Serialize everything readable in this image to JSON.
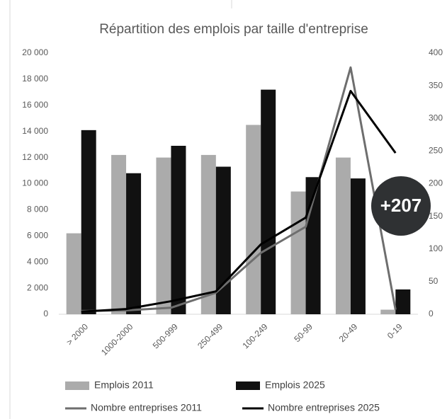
{
  "chart_data": {
    "type": "bar",
    "title": "Répartition des emplois par taille d'entreprise",
    "categories": [
      "> 2000",
      "1000-2000",
      "500-999",
      "250-499",
      "100-249",
      "50-99",
      "20-49",
      "0-19"
    ],
    "series": [
      {
        "name": "Emplois 2011",
        "color": "#ababab",
        "values": [
          6200,
          12200,
          12000,
          12200,
          14500,
          9400,
          12000,
          350
        ]
      },
      {
        "name": "Emplois 2025",
        "color": "#111111",
        "values": [
          14100,
          10800,
          12900,
          11300,
          17200,
          10500,
          10400,
          1900
        ]
      },
      {
        "name": "Nombre entreprises 2011",
        "type": "line",
        "axis": "y2",
        "color": "#6e6e6e",
        "values": [
          5,
          6,
          10,
          33,
          94,
          134,
          378,
          7
        ]
      },
      {
        "name": "Nombre entreprises 2025",
        "type": "line",
        "axis": "y2",
        "color": "#000000",
        "values": [
          4,
          8,
          20,
          35,
          107,
          148,
          342,
          247
        ]
      }
    ],
    "ylim": [
      0,
      20000
    ],
    "yticks": [
      0,
      {
        "value": 2000,
        "label": "2 000"
      },
      {
        "value": 4000,
        "label": "4 000"
      },
      {
        "value": 6000,
        "label": "6 000"
      },
      {
        "value": 8000,
        "label": "8 000"
      },
      {
        "value": 10000,
        "label": "10 000"
      },
      {
        "value": 12000,
        "label": "12 000"
      },
      {
        "value": 14000,
        "label": "14 000"
      },
      {
        "value": 16000,
        "label": "16 000"
      },
      {
        "value": 18000,
        "label": "18 000"
      },
      {
        "value": 20000,
        "label": "20 000"
      }
    ],
    "y2lim": [
      0,
      400
    ],
    "y2ticks": [
      0,
      50,
      100,
      150,
      200,
      250,
      300,
      350,
      400
    ],
    "badge": "+207"
  }
}
